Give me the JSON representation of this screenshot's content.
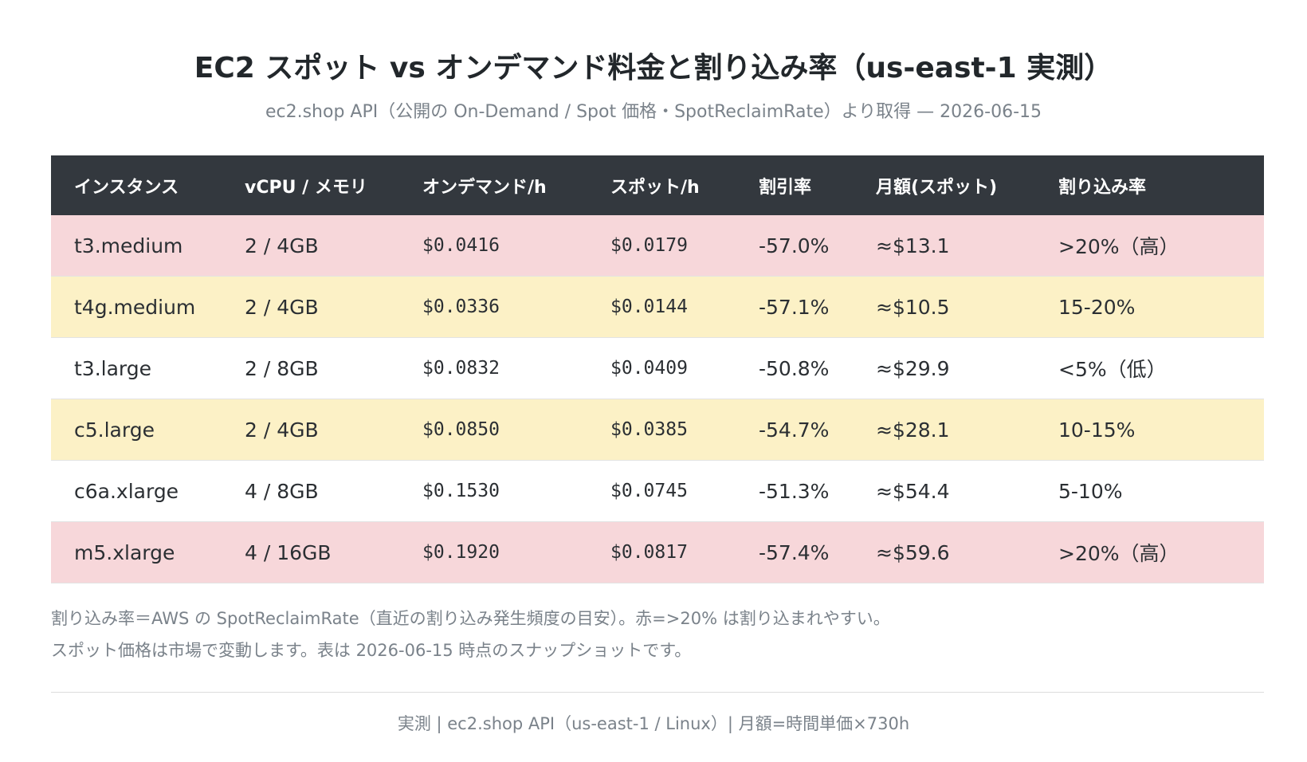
{
  "title": "EC2 スポット vs オンデマンド料金と割り込み率（us-east-1 実測）",
  "subtitle": "ec2.shop API（公開の On-Demand / Spot 価格・SpotReclaimRate）より取得 — 2026-06-15",
  "table": {
    "headers": [
      "インスタンス",
      "vCPU / メモリ",
      "オンデマンド/h",
      "スポット/h",
      "割引率",
      "月額(スポット)",
      "割り込み率"
    ],
    "rows": [
      {
        "tier": "high",
        "cells": [
          "t3.medium",
          "2 / 4GB",
          "$0.0416",
          "$0.0179",
          "-57.0%",
          "≈$13.1",
          ">20%（高）"
        ]
      },
      {
        "tier": "mid",
        "cells": [
          "t4g.medium",
          "2 / 4GB",
          "$0.0336",
          "$0.0144",
          "-57.1%",
          "≈$10.5",
          "15-20%"
        ]
      },
      {
        "tier": "low",
        "cells": [
          "t3.large",
          "2 / 8GB",
          "$0.0832",
          "$0.0409",
          "-50.8%",
          "≈$29.9",
          "<5%（低）"
        ]
      },
      {
        "tier": "mid",
        "cells": [
          "c5.large",
          "2 / 4GB",
          "$0.0850",
          "$0.0385",
          "-54.7%",
          "≈$28.1",
          "10-15%"
        ]
      },
      {
        "tier": "low",
        "cells": [
          "c6a.xlarge",
          "4 / 8GB",
          "$0.1530",
          "$0.0745",
          "-51.3%",
          "≈$54.4",
          "5-10%"
        ]
      },
      {
        "tier": "high",
        "cells": [
          "m5.xlarge",
          "4 / 16GB",
          "$0.1920",
          "$0.0817",
          "-57.4%",
          "≈$59.6",
          ">20%（高）"
        ]
      }
    ]
  },
  "notes": [
    "割り込み率＝AWS の SpotReclaimRate（直近の割り込み発生頻度の目安）。赤=>20% は割り込まれやすい。",
    "スポット価格は市場で変動します。表は 2026-06-15 時点のスナップショットです。"
  ],
  "footer": "実測 | ec2.shop API（us-east-1 / Linux）| 月額=時間単価×730h",
  "colors": {
    "header_bg": "#33383e",
    "high_row": "#f7d7da",
    "mid_row": "#fcf1c6",
    "low_row": "#ffffff"
  }
}
